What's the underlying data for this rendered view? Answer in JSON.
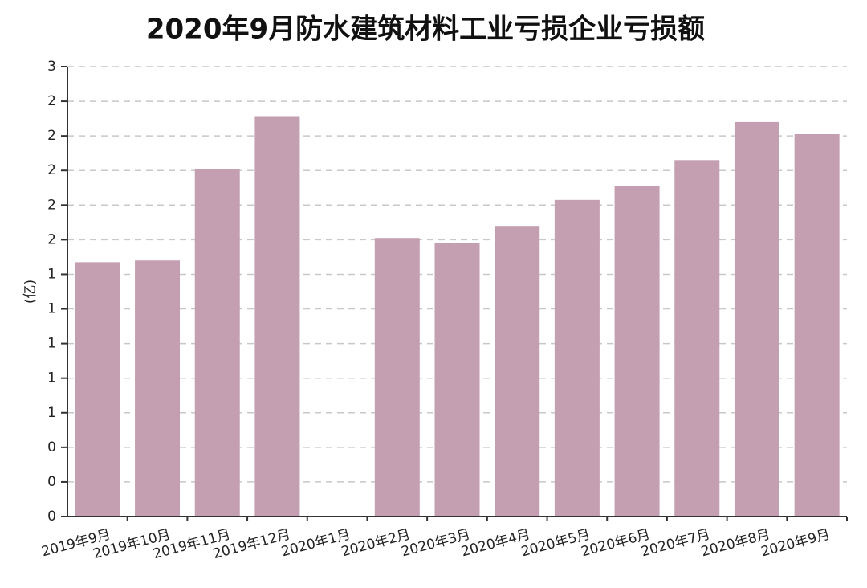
{
  "chart_data": {
    "type": "bar",
    "title": "2020年9月防水建筑材料工业亏损企业亏损额",
    "y_label": "(亿)",
    "categories": [
      "2019年9月",
      "2019年10月",
      "2019年11月",
      "2019年12月",
      "2020年1月",
      "2020年2月",
      "2020年3月",
      "2020年4月",
      "2020年5月",
      "2020年6月",
      "2020年7月",
      "2020年8月",
      "2020年9月"
    ],
    "values": [
      1.47,
      1.48,
      2.01,
      2.31,
      null,
      1.61,
      1.58,
      1.68,
      1.83,
      1.91,
      2.06,
      2.28,
      2.21
    ],
    "color": "#c49fb1",
    "ylim": [
      0,
      2.6
    ],
    "yticks": [
      0,
      {
        "value": 0.2,
        "label": "0"
      },
      {
        "value": 0.4,
        "label": "0"
      },
      {
        "value": 0.6,
        "label": "1"
      },
      {
        "value": 0.8,
        "label": "1"
      },
      1,
      {
        "value": 1.2,
        "label": "1"
      },
      {
        "value": 1.4,
        "label": "1"
      },
      {
        "value": 1.6,
        "label": "2"
      },
      {
        "value": 1.8,
        "label": "2"
      },
      2,
      {
        "value": 2.2,
        "label": "2"
      },
      {
        "value": 2.4,
        "label": "2"
      },
      {
        "value": 2.6,
        "label": "3"
      }
    ],
    "grid": true
  }
}
